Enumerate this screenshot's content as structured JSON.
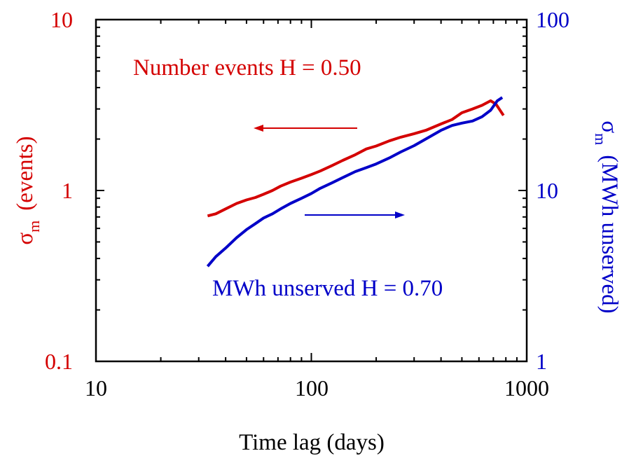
{
  "chart_data": {
    "type": "line",
    "x_scale": "log",
    "y_scale": "log",
    "xlabel": "Time lag (days)",
    "xlim": [
      10,
      1000
    ],
    "x_ticks": [
      "10",
      "100",
      "1000"
    ],
    "y_left": {
      "label_symbol": "σ",
      "label_sub": "m",
      "label_text": "(events)",
      "range": [
        0.1,
        10
      ],
      "ticks": [
        "0.1",
        "1",
        "10"
      ],
      "color": "#d40000"
    },
    "y_right": {
      "label_symbol": "σ",
      "label_sub": "m",
      "label_text": "(MWh unserved)",
      "range": [
        1,
        100
      ],
      "ticks": [
        "1",
        "10",
        "100"
      ],
      "color": "#0000c8"
    },
    "annotations": {
      "events": "Number events H = 0.50",
      "mwh": "MWh unserved H = 0.70"
    },
    "grid": false,
    "series": [
      {
        "name": "Number events",
        "axis": "left",
        "color": "#d40000",
        "points": [
          [
            33,
            0.71
          ],
          [
            36,
            0.73
          ],
          [
            40,
            0.78
          ],
          [
            45,
            0.84
          ],
          [
            50,
            0.88
          ],
          [
            55,
            0.91
          ],
          [
            60,
            0.95
          ],
          [
            66,
            1.0
          ],
          [
            72,
            1.06
          ],
          [
            80,
            1.12
          ],
          [
            90,
            1.18
          ],
          [
            100,
            1.24
          ],
          [
            110,
            1.3
          ],
          [
            125,
            1.4
          ],
          [
            140,
            1.5
          ],
          [
            160,
            1.62
          ],
          [
            180,
            1.75
          ],
          [
            200,
            1.82
          ],
          [
            230,
            1.95
          ],
          [
            260,
            2.05
          ],
          [
            300,
            2.15
          ],
          [
            340,
            2.25
          ],
          [
            400,
            2.45
          ],
          [
            450,
            2.6
          ],
          [
            500,
            2.85
          ],
          [
            560,
            3.0
          ],
          [
            620,
            3.15
          ],
          [
            680,
            3.35
          ],
          [
            720,
            3.2
          ],
          [
            780,
            2.75
          ]
        ]
      },
      {
        "name": "MWh unserved",
        "axis": "right",
        "color": "#0000c8",
        "points": [
          [
            33,
            3.6
          ],
          [
            36,
            4.1
          ],
          [
            40,
            4.6
          ],
          [
            45,
            5.3
          ],
          [
            50,
            5.9
          ],
          [
            55,
            6.4
          ],
          [
            60,
            6.9
          ],
          [
            66,
            7.3
          ],
          [
            72,
            7.8
          ],
          [
            80,
            8.4
          ],
          [
            90,
            9.0
          ],
          [
            100,
            9.6
          ],
          [
            110,
            10.3
          ],
          [
            125,
            11.1
          ],
          [
            140,
            11.9
          ],
          [
            160,
            12.9
          ],
          [
            180,
            13.6
          ],
          [
            200,
            14.3
          ],
          [
            230,
            15.5
          ],
          [
            260,
            16.8
          ],
          [
            300,
            18.3
          ],
          [
            340,
            20.0
          ],
          [
            400,
            22.5
          ],
          [
            450,
            24.0
          ],
          [
            500,
            24.8
          ],
          [
            560,
            25.5
          ],
          [
            620,
            27.0
          ],
          [
            680,
            29.5
          ],
          [
            730,
            33.5
          ],
          [
            770,
            35.0
          ]
        ]
      }
    ]
  }
}
